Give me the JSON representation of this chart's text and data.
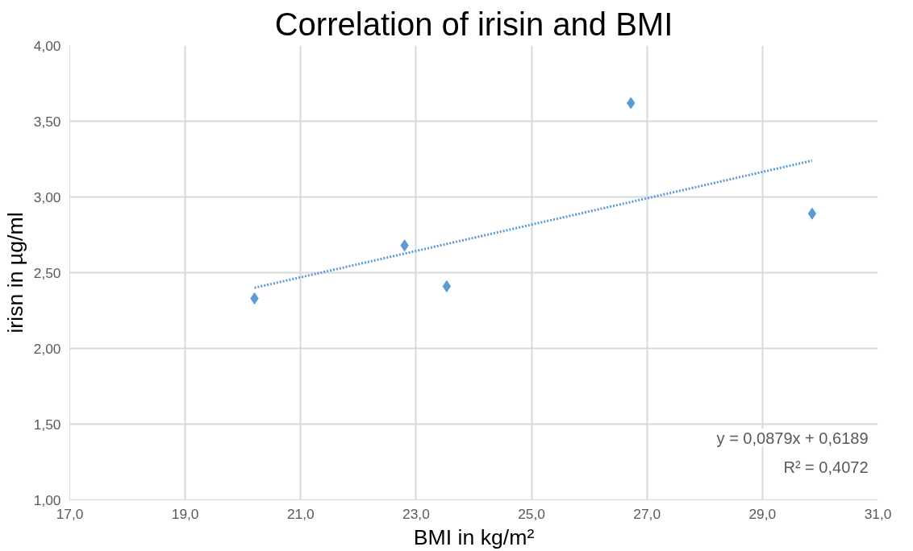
{
  "chart_data": {
    "type": "scatter",
    "title": "Correlation of irisin and BMI",
    "xlabel": "BMI in kg/m²",
    "ylabel": "irisn in µg/ml",
    "xlim": [
      17,
      31
    ],
    "ylim": [
      1,
      4
    ],
    "xticks": [
      {
        "value": 17,
        "label": "17,0"
      },
      {
        "value": 19,
        "label": "19,0"
      },
      {
        "value": 21,
        "label": "21,0"
      },
      {
        "value": 23,
        "label": "23,0"
      },
      {
        "value": 25,
        "label": "25,0"
      },
      {
        "value": 27,
        "label": "27,0"
      },
      {
        "value": 29,
        "label": "29,0"
      },
      {
        "value": 31,
        "label": "31,0"
      }
    ],
    "yticks": [
      {
        "value": 1,
        "label": "1,00"
      },
      {
        "value": 1.5,
        "label": "1,50"
      },
      {
        "value": 2,
        "label": "2,00"
      },
      {
        "value": 2.5,
        "label": "2,50"
      },
      {
        "value": 3,
        "label": "3,00"
      },
      {
        "value": 3.5,
        "label": "3,50"
      },
      {
        "value": 4,
        "label": "4,00"
      }
    ],
    "grid": true,
    "marker": "diamond",
    "series": [
      {
        "color": "#5b9bd5",
        "x": [
          20.2,
          22.8,
          23.53,
          26.72,
          29.86
        ],
        "values": [
          2.33,
          2.68,
          2.41,
          3.62,
          2.89
        ]
      },
      {
        "type": "line",
        "color": "#5b9bd5",
        "line_style": "dotted",
        "marker": "none",
        "x": [
          20.2,
          29.86
        ],
        "values": [
          2.4,
          3.24
        ]
      }
    ],
    "annotations": [
      "y = 0,0879x + 0,6189",
      "R² = 0,4072"
    ]
  }
}
